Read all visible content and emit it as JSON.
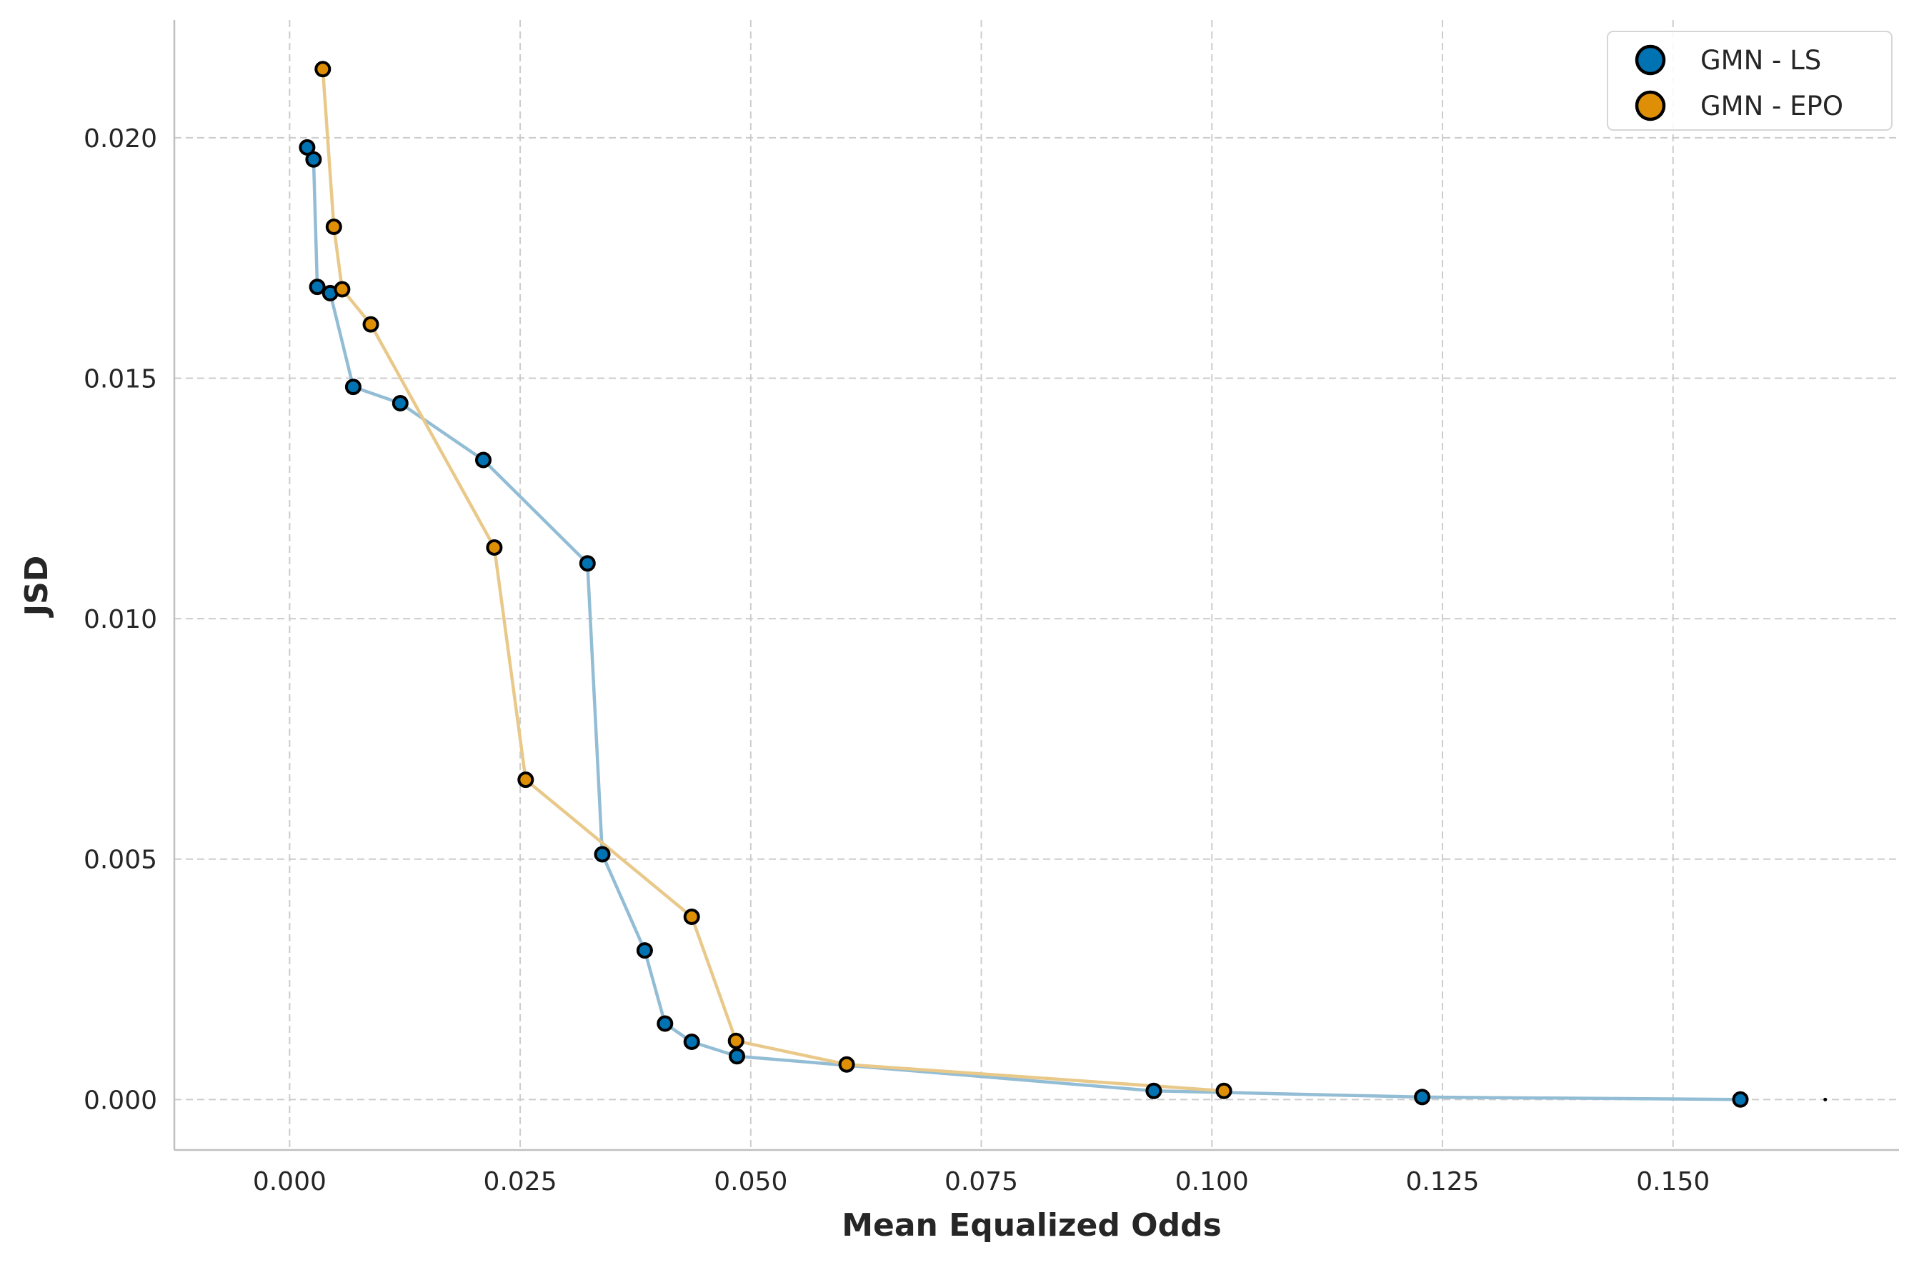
{
  "chart_data": {
    "type": "line",
    "xlabel": "Mean Equalized Odds",
    "ylabel": "JSD",
    "xlim": [
      -0.0125,
      0.1745
    ],
    "ylim": [
      -0.00105,
      0.02245
    ],
    "x_ticks": [
      0.0,
      0.025,
      0.05,
      0.075,
      0.1,
      0.125,
      0.15
    ],
    "x_tick_labels": [
      "0.000",
      "0.025",
      "0.050",
      "0.075",
      "0.100",
      "0.125",
      "0.150"
    ],
    "y_ticks": [
      0.0,
      0.005,
      0.01,
      0.015,
      0.02
    ],
    "y_tick_labels": [
      "0.000",
      "0.005",
      "0.010",
      "0.015",
      "0.020"
    ],
    "grid": true,
    "legend_position": "top-right",
    "series": [
      {
        "name": "GMN - LS",
        "color": "#0173b2",
        "line_color": "#92bdd5",
        "points": [
          [
            0.0019,
            0.0198
          ],
          [
            0.0026,
            0.01955
          ],
          [
            0.003,
            0.0169
          ],
          [
            0.0044,
            0.01677
          ],
          [
            0.0069,
            0.01482
          ],
          [
            0.012,
            0.01448
          ],
          [
            0.021,
            0.0133
          ],
          [
            0.0323,
            0.01115
          ],
          [
            0.0339,
            0.0051
          ],
          [
            0.0385,
            0.0031
          ],
          [
            0.0407,
            0.00158
          ],
          [
            0.0436,
            0.0012
          ],
          [
            0.0485,
            0.0009
          ],
          [
            0.0937,
            0.00018
          ],
          [
            0.1228,
            5e-05
          ],
          [
            0.1573,
            0.0
          ]
        ]
      },
      {
        "name": "GMN - EPO",
        "color": "#de8f05",
        "line_color": "#e9c98a",
        "points": [
          [
            0.0036,
            0.02143
          ],
          [
            0.0048,
            0.01815
          ],
          [
            0.0057,
            0.01685
          ],
          [
            0.0088,
            0.01612
          ],
          [
            0.0222,
            0.01148
          ],
          [
            0.0256,
            0.00665
          ],
          [
            0.0436,
            0.0038
          ],
          [
            0.0484,
            0.00122
          ],
          [
            0.0604,
            0.00073
          ],
          [
            0.1013,
            0.00018
          ]
        ]
      }
    ],
    "stray_marker": [
      0.1665,
      0.0
    ]
  }
}
